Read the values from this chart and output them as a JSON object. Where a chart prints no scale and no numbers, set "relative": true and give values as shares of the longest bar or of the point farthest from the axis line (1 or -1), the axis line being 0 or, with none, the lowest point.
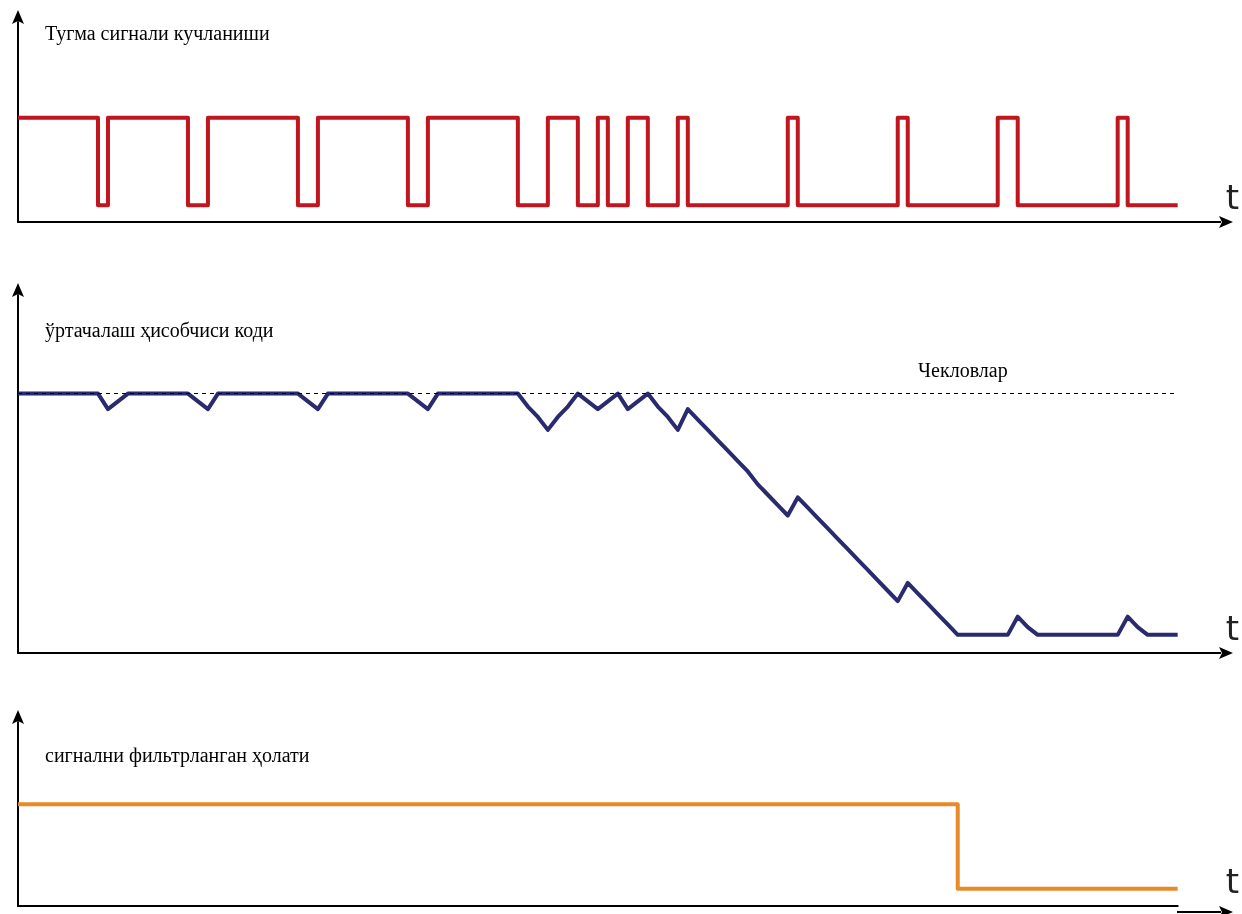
{
  "chart_data": [
    {
      "type": "step",
      "title": "Тугма сигнали кучланиши",
      "xlabel": "t",
      "relative": true,
      "color": "#c0161f",
      "categories": [
        null,
        null,
        null,
        null,
        null,
        null,
        null,
        null,
        null,
        null,
        null,
        null,
        null,
        null,
        null,
        null,
        null,
        null,
        null,
        null,
        null,
        null,
        null,
        null,
        null,
        null,
        null,
        null,
        null,
        null,
        null,
        null,
        null,
        null,
        null,
        null,
        null,
        null,
        null,
        null,
        null,
        null,
        null,
        null,
        null,
        null,
        null,
        null,
        null,
        null,
        null,
        null,
        null,
        null,
        null,
        null,
        null,
        null,
        null,
        null,
        null,
        null,
        null,
        null,
        null,
        null,
        null,
        null,
        null,
        null,
        null,
        null,
        null,
        null,
        null,
        null,
        null,
        null,
        null,
        null,
        null,
        null,
        null,
        null,
        null,
        null,
        null,
        null,
        null,
        null,
        null,
        null,
        null,
        null,
        null,
        null,
        null,
        null,
        null,
        null,
        null,
        null,
        null,
        null,
        null,
        null,
        null,
        null,
        null,
        null,
        null,
        null,
        null,
        null,
        null,
        null,
        null
      ],
      "values": [
        1,
        1,
        1,
        1,
        1,
        1,
        1,
        1,
        0.16,
        1,
        1,
        1,
        1,
        1,
        1,
        1,
        1,
        0.16,
        0.16,
        1,
        1,
        1,
        1,
        1,
        1,
        1,
        1,
        1,
        0.16,
        0.16,
        1,
        1,
        1,
        1,
        1,
        1,
        1,
        1,
        1,
        0.16,
        0.16,
        1,
        1,
        1,
        1,
        1,
        1,
        1,
        1,
        1,
        0.16,
        0.16,
        0.16,
        1,
        1,
        1,
        0.16,
        0.16,
        1,
        0.16,
        0.16,
        1,
        1,
        0.16,
        0.16,
        0.16,
        1,
        0.16,
        0.16,
        0.16,
        0.16,
        0.16,
        0.16,
        0.16,
        0.16,
        0.16,
        0.16,
        1,
        0.16,
        0.16,
        0.16,
        0.16,
        0.16,
        0.16,
        0.16,
        0.16,
        0.16,
        0.16,
        1,
        0.16,
        0.16,
        0.16,
        0.16,
        0.16,
        0.16,
        0.16,
        0.16,
        0.16,
        1,
        1,
        0.16,
        0.16,
        0.16,
        0.16,
        0.16,
        0.16,
        0.16,
        0.16,
        0.16,
        0.16,
        1,
        0.16,
        0.16,
        0.16,
        0.16,
        0.16,
        0.16
      ]
    },
    {
      "type": "line",
      "title": "ўртачалаш ҳисобчиси коди",
      "xlabel": "t",
      "relative": true,
      "color": "#2a2a6e",
      "categories": [
        null,
        null,
        null,
        null,
        null,
        null,
        null,
        null,
        null,
        null,
        null,
        null,
        null,
        null,
        null,
        null,
        null,
        null,
        null,
        null,
        null,
        null,
        null,
        null,
        null,
        null,
        null,
        null,
        null,
        null,
        null,
        null,
        null,
        null,
        null,
        null,
        null,
        null,
        null,
        null,
        null,
        null,
        null,
        null,
        null,
        null,
        null,
        null,
        null,
        null,
        null,
        null,
        null,
        null,
        null,
        null,
        null,
        null,
        null,
        null,
        null,
        null,
        null,
        null,
        null,
        null,
        null,
        null,
        null,
        null,
        null,
        null,
        null,
        null,
        null,
        null,
        null,
        null,
        null,
        null,
        null,
        null,
        null,
        null,
        null,
        null,
        null,
        null,
        null,
        null,
        null,
        null,
        null,
        null,
        null,
        null,
        null,
        null,
        null,
        null,
        null,
        null,
        null,
        null,
        null,
        null,
        null,
        null,
        null,
        null,
        null,
        null,
        null,
        null,
        null,
        null,
        null
      ],
      "values": [
        1,
        1,
        1,
        1,
        1,
        1,
        1,
        1,
        1,
        0.94,
        0.97,
        1,
        1,
        1,
        1,
        1,
        1,
        1,
        0.97,
        0.94,
        1,
        1,
        1,
        1,
        1,
        1,
        1,
        1,
        1,
        0.97,
        0.94,
        1,
        1,
        1,
        1,
        1,
        1,
        1,
        1,
        1,
        0.97,
        0.94,
        1,
        1,
        1,
        1,
        1,
        1,
        1,
        1,
        1,
        0.95,
        0.91,
        0.86,
        0.91,
        0.95,
        1,
        0.97,
        0.94,
        0.97,
        1,
        0.94,
        0.97,
        1,
        0.95,
        0.91,
        0.86,
        0.94,
        0.9,
        0.86,
        0.82,
        0.78,
        0.74,
        0.7,
        0.65,
        0.61,
        0.57,
        0.53,
        0.6,
        0.56,
        0.52,
        0.48,
        0.44,
        0.4,
        0.36,
        0.32,
        0.28,
        0.24,
        0.2,
        0.27,
        0.23,
        0.19,
        0.15,
        0.11,
        0.07,
        0.07,
        0.07,
        0.07,
        0.07,
        0.07,
        0.14,
        0.1,
        0.07,
        0.07,
        0.07,
        0.07,
        0.07,
        0.07,
        0.07,
        0.07,
        0.07,
        0.14,
        0.1,
        0.07,
        0.07,
        0.07,
        0.07
      ],
      "ref_lines": [
        {
          "axis": "y",
          "value": 1,
          "label": "Чекловлар",
          "color": "#000000",
          "line_style": "dashed"
        }
      ]
    },
    {
      "type": "step",
      "title": "сигнални фильтрланган ҳолати",
      "xlabel": "t",
      "relative": true,
      "color": "#e8892a",
      "categories": [
        null,
        null,
        null,
        null,
        null,
        null,
        null,
        null,
        null,
        null,
        null,
        null,
        null,
        null,
        null,
        null,
        null,
        null,
        null,
        null,
        null,
        null,
        null,
        null,
        null,
        null,
        null,
        null,
        null,
        null,
        null,
        null,
        null,
        null,
        null,
        null,
        null,
        null,
        null,
        null,
        null,
        null,
        null,
        null,
        null,
        null,
        null,
        null,
        null,
        null,
        null,
        null,
        null,
        null,
        null,
        null,
        null,
        null,
        null,
        null,
        null,
        null,
        null,
        null,
        null,
        null,
        null,
        null,
        null,
        null,
        null,
        null,
        null,
        null,
        null,
        null,
        null,
        null,
        null,
        null,
        null,
        null,
        null,
        null,
        null,
        null,
        null,
        null,
        null,
        null,
        null,
        null,
        null,
        null,
        null,
        null,
        null,
        null,
        null,
        null,
        null,
        null,
        null,
        null,
        null,
        null,
        null,
        null,
        null,
        null,
        null,
        null,
        null,
        null,
        null,
        null,
        null
      ],
      "values": [
        1,
        1,
        1,
        1,
        1,
        1,
        1,
        1,
        1,
        1,
        1,
        1,
        1,
        1,
        1,
        1,
        1,
        1,
        1,
        1,
        1,
        1,
        1,
        1,
        1,
        1,
        1,
        1,
        1,
        1,
        1,
        1,
        1,
        1,
        1,
        1,
        1,
        1,
        1,
        1,
        1,
        1,
        1,
        1,
        1,
        1,
        1,
        1,
        1,
        1,
        1,
        1,
        1,
        1,
        1,
        1,
        1,
        1,
        1,
        1,
        1,
        1,
        1,
        1,
        1,
        1,
        1,
        1,
        1,
        1,
        1,
        1,
        1,
        1,
        1,
        1,
        1,
        1,
        1,
        1,
        1,
        1,
        1,
        1,
        1,
        1,
        1,
        1,
        1,
        1,
        1,
        1,
        1,
        1,
        0.17,
        0.17,
        0.17,
        0.17,
        0.17,
        0.17,
        0.17,
        0.17,
        0.17,
        0.17,
        0.17,
        0.17,
        0.17,
        0.17,
        0.17,
        0.17,
        0.17,
        0.17,
        0.17,
        0.17,
        0.17,
        0.17,
        0.17
      ]
    }
  ]
}
